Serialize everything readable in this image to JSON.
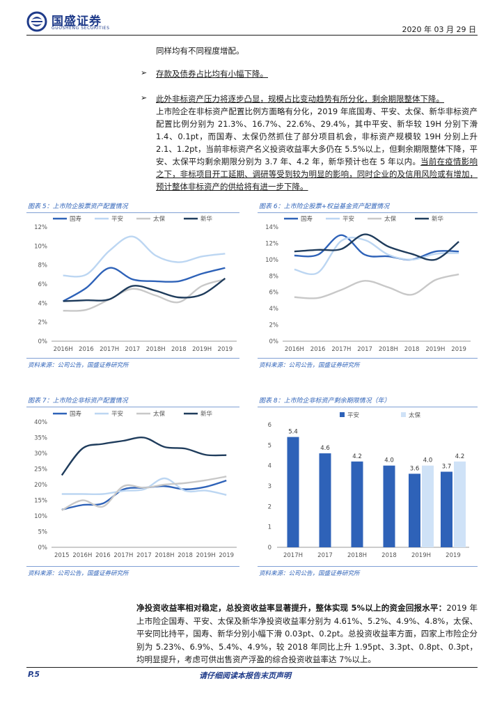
{
  "header": {
    "brand": "国盛证券",
    "brand_sub": "GUOSHENG SECURITIES",
    "date": "2020 年 03 月 29 日"
  },
  "text": {
    "p1": "同样均有不同程度增配。",
    "bullet1": "存款及债券占比均有小幅下降。",
    "bullet2_title": "此外非标资产压力将逐步凸显，规模占比变动趋势有所分化，剩余期限整体下降。",
    "bullet2_body": "上市险企在非标资产配置比例方面略有分化，2019 年底国寿、平安、太保、新华非标资产配置比例分别为 21.3%、16.7%、22.6%、29.4%，其中平安、新华较 19H 分别下滑 1.4、0.1pt，而国寿、太保仍然抓住了部分项目机会，非标资产规模较 19H 分别上升 2.1、1.2pt，当前非标资产名义投资收益率大多仍在 5.5%以上，但剩余期限整体下降，平安、太保平均剩余期限分别为 3.7 年、4.2 年，新华预计也在 5 年以内。",
    "bullet2_tail": "当前在疫情影响之下，非标项目开工延期、调研等受到较为明显的影响，同时企业的及信用风险或有增加，预计整体非标资产的供给将有进一步下降。",
    "bottom_bold": "净投资收益率相对稳定，总投资收益率显著提升，整体实现 5%以上的资金回报水平：",
    "bottom_body": "2019 年上市险企国寿、平安、太保及新华净投资收益率分别为 4.61%、5.2%、4.9%、4.8%，太保、平安同比持平，国寿、新华分别小幅下滑 0.03pt、0.2pt。总投资收益率方面，四家上市险企分别为 5.23%、6.9%、5.4%、4.9%，较 2018 年同比上升 1.95pt、3.3pt、0.8pt、0.3pt，均明显提升，考虑可供出售资产浮盈的综合投资收益率达 7%以上。"
  },
  "figures": {
    "fig5": {
      "title": "图表 5：上市险企股票资产配置情况",
      "source": "资料来源：公司公告，国盛证券研究所"
    },
    "fig6": {
      "title": "图表 6：上市险企股票+权益基金资产配置情况",
      "source": "资料来源：公司公告，国盛证券研究所"
    },
    "fig7": {
      "title": "图表 7：上市险企非标资产配置情况",
      "source": "资料来源：公司公告，国盛证券研究所"
    },
    "fig8": {
      "title": "图表 8：上市险企非标资产剩余期限情况（年）",
      "source": "资料来源：公司公告，国盛证券研究所"
    }
  },
  "colors": {
    "guoshou": "#2e62b8",
    "pingan": "#bcd6f2",
    "taibao": "#c8c8c8",
    "xinhua": "#1f3c5c",
    "accent": "#2e62b8"
  },
  "chart_data": [
    {
      "type": "line",
      "categories": [
        "2016H",
        "2016",
        "2017H",
        "2017",
        "2018H",
        "2018",
        "2019H",
        "2019"
      ],
      "ylim": [
        0,
        12
      ],
      "yticks": [
        "0%",
        "2%",
        "4%",
        "6%",
        "8%",
        "10%",
        "12%"
      ],
      "legend_position": "top",
      "grid": false,
      "series": [
        {
          "name": "国寿",
          "values": [
            4.2,
            5.6,
            7.7,
            6.5,
            6.3,
            6.3,
            7.1,
            7.7
          ]
        },
        {
          "name": "平安",
          "values": [
            6.9,
            7.0,
            9.5,
            11.0,
            9.0,
            8.3,
            8.9,
            9.2
          ]
        },
        {
          "name": "太保",
          "values": [
            3.2,
            3.3,
            4.4,
            5.5,
            4.8,
            4.1,
            5.8,
            6.5
          ]
        },
        {
          "name": "新华",
          "values": [
            4.2,
            4.3,
            4.4,
            5.8,
            5.3,
            4.6,
            4.9,
            6.6
          ]
        }
      ]
    },
    {
      "type": "line",
      "categories": [
        "2016H",
        "2016",
        "2017H",
        "2017",
        "2018H",
        "2018",
        "2019H",
        "2019"
      ],
      "ylim": [
        0,
        14
      ],
      "yticks": [
        "0%",
        "2%",
        "4%",
        "6%",
        "8%",
        "10%",
        "12%",
        "14%"
      ],
      "legend_position": "top",
      "grid": false,
      "series": [
        {
          "name": "国寿",
          "values": [
            10.5,
            10.6,
            13.0,
            10.6,
            10.4,
            10.0,
            11.0,
            11.0
          ]
        },
        {
          "name": "平安",
          "values": [
            8.8,
            8.4,
            12.3,
            12.4,
            10.6,
            10.0,
            10.7,
            10.8
          ]
        },
        {
          "name": "太保",
          "values": [
            5.4,
            5.3,
            6.3,
            7.4,
            6.6,
            5.7,
            7.5,
            8.2
          ]
        },
        {
          "name": "新华",
          "values": [
            11.0,
            11.2,
            11.3,
            13.1,
            11.6,
            10.7,
            10.0,
            12.2
          ]
        }
      ]
    },
    {
      "type": "line",
      "categories": [
        "2015",
        "2016H",
        "2016",
        "2017H",
        "2017",
        "2018H",
        "2018",
        "2019H",
        "2019"
      ],
      "ylim": [
        0,
        40
      ],
      "yticks": [
        "0%",
        "5%",
        "10%",
        "15%",
        "20%",
        "25%",
        "30%",
        "35%",
        "40%"
      ],
      "legend_position": "top",
      "grid": false,
      "series": [
        {
          "name": "国寿",
          "values": [
            12.0,
            13.5,
            14.0,
            18.5,
            19.0,
            19.5,
            18.5,
            19.3,
            21.3
          ]
        },
        {
          "name": "平安",
          "values": [
            17.0,
            17.0,
            17.0,
            18.0,
            18.5,
            22.0,
            18.0,
            18.1,
            16.7
          ]
        },
        {
          "name": "太保",
          "values": [
            11.8,
            15.0,
            13.0,
            19.5,
            19.0,
            20.0,
            20.5,
            21.4,
            22.6
          ]
        },
        {
          "name": "新华",
          "values": [
            23.0,
            31.5,
            33.0,
            34.0,
            35.0,
            32.0,
            31.5,
            29.5,
            29.4
          ]
        }
      ]
    },
    {
      "type": "bar",
      "categories": [
        "2017H",
        "2017",
        "2018H",
        "2018",
        "2019H",
        "2019"
      ],
      "ylim": [
        0,
        6
      ],
      "yticks": [
        "0",
        "1",
        "2",
        "3",
        "4",
        "5",
        "6"
      ],
      "legend_position": "top",
      "grid": false,
      "series": [
        {
          "name": "平安",
          "values": [
            5.4,
            4.6,
            4.2,
            4.0,
            3.6,
            3.7
          ],
          "labels": [
            "5.4",
            "4.6",
            "4.2",
            "4.0",
            "3.6",
            "3.7"
          ]
        },
        {
          "name": "太保",
          "values": [
            null,
            null,
            null,
            null,
            4.0,
            4.2
          ],
          "labels": [
            "",
            "",
            "",
            "",
            "4.0",
            "4.2"
          ]
        }
      ]
    }
  ]
}
